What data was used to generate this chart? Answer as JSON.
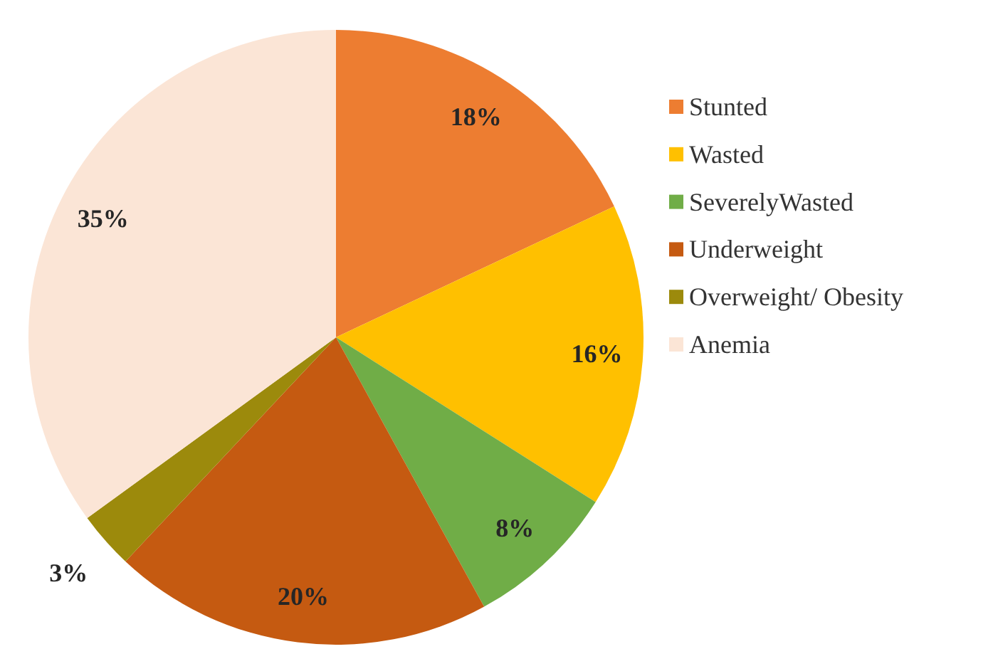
{
  "chart_data": {
    "type": "pie",
    "categories": [
      "Stunted",
      "Wasted",
      "SeverelyWasted",
      "Underweight",
      "Overweight/ Obesity",
      "Anemia"
    ],
    "values": [
      18,
      16,
      8,
      20,
      3,
      35
    ],
    "colors": [
      "#ed7d31",
      "#ffc000",
      "#70ad47",
      "#c55a11",
      "#9c8a0c",
      "#fbe5d6"
    ],
    "value_labels": [
      "18%",
      "16%",
      "8%",
      "20%",
      "3%",
      "35%"
    ],
    "legend": "right"
  }
}
